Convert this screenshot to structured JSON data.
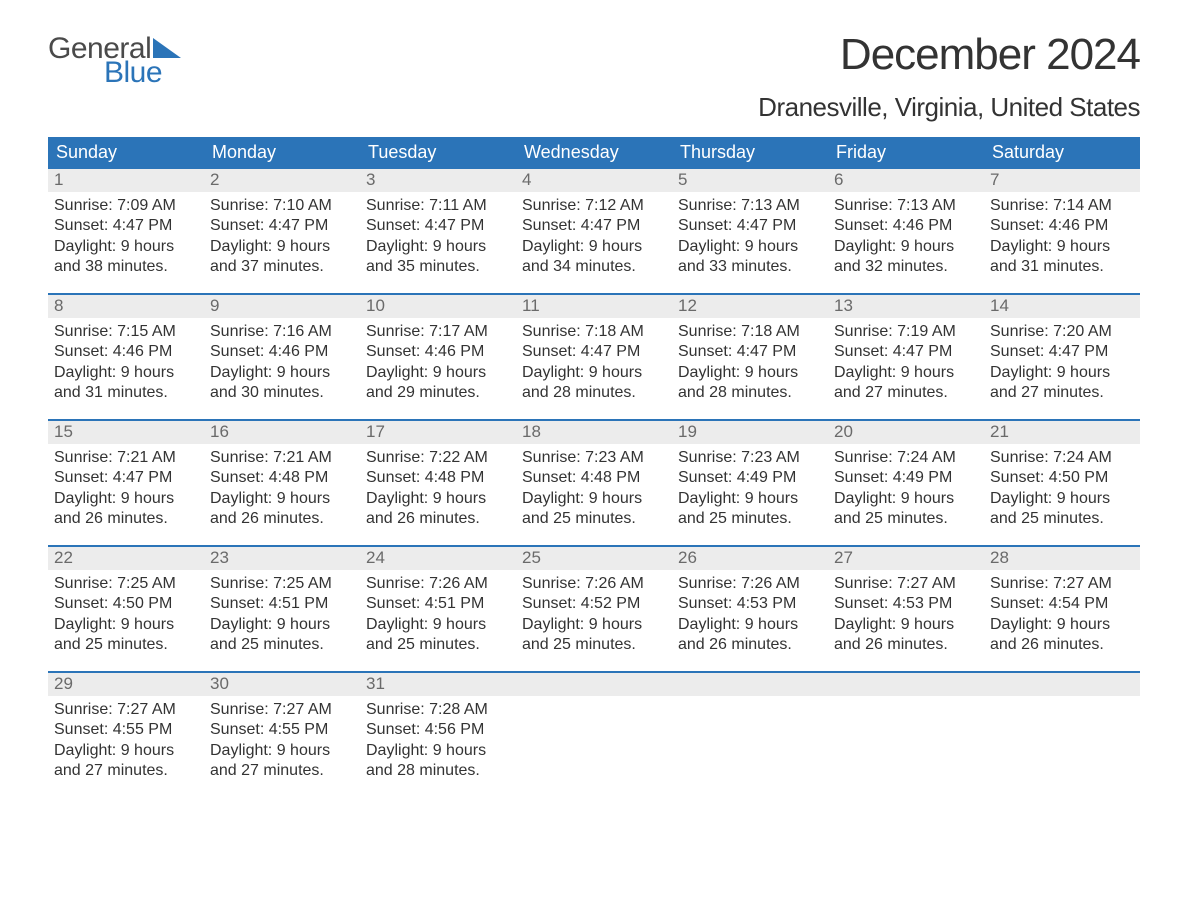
{
  "logo": {
    "text_general": "General",
    "text_blue": "Blue",
    "tri_color": "#2b74b8"
  },
  "title": "December 2024",
  "location": "Dranesville, Virginia, United States",
  "colors": {
    "header_bg": "#2b74b8",
    "header_text": "#ffffff",
    "daynum_bg": "#ececec",
    "daynum_text": "#6a6a6a",
    "body_text": "#333333",
    "week_border": "#2b74b8",
    "page_bg": "#ffffff"
  },
  "typography": {
    "title_fontsize_pt": 33,
    "location_fontsize_pt": 20,
    "dow_fontsize_pt": 14,
    "daynum_fontsize_pt": 13,
    "body_fontsize_pt": 12,
    "font_family": "Arial"
  },
  "dow": [
    "Sunday",
    "Monday",
    "Tuesday",
    "Wednesday",
    "Thursday",
    "Friday",
    "Saturday"
  ],
  "weeks": [
    [
      {
        "num": "1",
        "sunrise": "Sunrise: 7:09 AM",
        "sunset": "Sunset: 4:47 PM",
        "dl1": "Daylight: 9 hours",
        "dl2": "and 38 minutes."
      },
      {
        "num": "2",
        "sunrise": "Sunrise: 7:10 AM",
        "sunset": "Sunset: 4:47 PM",
        "dl1": "Daylight: 9 hours",
        "dl2": "and 37 minutes."
      },
      {
        "num": "3",
        "sunrise": "Sunrise: 7:11 AM",
        "sunset": "Sunset: 4:47 PM",
        "dl1": "Daylight: 9 hours",
        "dl2": "and 35 minutes."
      },
      {
        "num": "4",
        "sunrise": "Sunrise: 7:12 AM",
        "sunset": "Sunset: 4:47 PM",
        "dl1": "Daylight: 9 hours",
        "dl2": "and 34 minutes."
      },
      {
        "num": "5",
        "sunrise": "Sunrise: 7:13 AM",
        "sunset": "Sunset: 4:47 PM",
        "dl1": "Daylight: 9 hours",
        "dl2": "and 33 minutes."
      },
      {
        "num": "6",
        "sunrise": "Sunrise: 7:13 AM",
        "sunset": "Sunset: 4:46 PM",
        "dl1": "Daylight: 9 hours",
        "dl2": "and 32 minutes."
      },
      {
        "num": "7",
        "sunrise": "Sunrise: 7:14 AM",
        "sunset": "Sunset: 4:46 PM",
        "dl1": "Daylight: 9 hours",
        "dl2": "and 31 minutes."
      }
    ],
    [
      {
        "num": "8",
        "sunrise": "Sunrise: 7:15 AM",
        "sunset": "Sunset: 4:46 PM",
        "dl1": "Daylight: 9 hours",
        "dl2": "and 31 minutes."
      },
      {
        "num": "9",
        "sunrise": "Sunrise: 7:16 AM",
        "sunset": "Sunset: 4:46 PM",
        "dl1": "Daylight: 9 hours",
        "dl2": "and 30 minutes."
      },
      {
        "num": "10",
        "sunrise": "Sunrise: 7:17 AM",
        "sunset": "Sunset: 4:46 PM",
        "dl1": "Daylight: 9 hours",
        "dl2": "and 29 minutes."
      },
      {
        "num": "11",
        "sunrise": "Sunrise: 7:18 AM",
        "sunset": "Sunset: 4:47 PM",
        "dl1": "Daylight: 9 hours",
        "dl2": "and 28 minutes."
      },
      {
        "num": "12",
        "sunrise": "Sunrise: 7:18 AM",
        "sunset": "Sunset: 4:47 PM",
        "dl1": "Daylight: 9 hours",
        "dl2": "and 28 minutes."
      },
      {
        "num": "13",
        "sunrise": "Sunrise: 7:19 AM",
        "sunset": "Sunset: 4:47 PM",
        "dl1": "Daylight: 9 hours",
        "dl2": "and 27 minutes."
      },
      {
        "num": "14",
        "sunrise": "Sunrise: 7:20 AM",
        "sunset": "Sunset: 4:47 PM",
        "dl1": "Daylight: 9 hours",
        "dl2": "and 27 minutes."
      }
    ],
    [
      {
        "num": "15",
        "sunrise": "Sunrise: 7:21 AM",
        "sunset": "Sunset: 4:47 PM",
        "dl1": "Daylight: 9 hours",
        "dl2": "and 26 minutes."
      },
      {
        "num": "16",
        "sunrise": "Sunrise: 7:21 AM",
        "sunset": "Sunset: 4:48 PM",
        "dl1": "Daylight: 9 hours",
        "dl2": "and 26 minutes."
      },
      {
        "num": "17",
        "sunrise": "Sunrise: 7:22 AM",
        "sunset": "Sunset: 4:48 PM",
        "dl1": "Daylight: 9 hours",
        "dl2": "and 26 minutes."
      },
      {
        "num": "18",
        "sunrise": "Sunrise: 7:23 AM",
        "sunset": "Sunset: 4:48 PM",
        "dl1": "Daylight: 9 hours",
        "dl2": "and 25 minutes."
      },
      {
        "num": "19",
        "sunrise": "Sunrise: 7:23 AM",
        "sunset": "Sunset: 4:49 PM",
        "dl1": "Daylight: 9 hours",
        "dl2": "and 25 minutes."
      },
      {
        "num": "20",
        "sunrise": "Sunrise: 7:24 AM",
        "sunset": "Sunset: 4:49 PM",
        "dl1": "Daylight: 9 hours",
        "dl2": "and 25 minutes."
      },
      {
        "num": "21",
        "sunrise": "Sunrise: 7:24 AM",
        "sunset": "Sunset: 4:50 PM",
        "dl1": "Daylight: 9 hours",
        "dl2": "and 25 minutes."
      }
    ],
    [
      {
        "num": "22",
        "sunrise": "Sunrise: 7:25 AM",
        "sunset": "Sunset: 4:50 PM",
        "dl1": "Daylight: 9 hours",
        "dl2": "and 25 minutes."
      },
      {
        "num": "23",
        "sunrise": "Sunrise: 7:25 AM",
        "sunset": "Sunset: 4:51 PM",
        "dl1": "Daylight: 9 hours",
        "dl2": "and 25 minutes."
      },
      {
        "num": "24",
        "sunrise": "Sunrise: 7:26 AM",
        "sunset": "Sunset: 4:51 PM",
        "dl1": "Daylight: 9 hours",
        "dl2": "and 25 minutes."
      },
      {
        "num": "25",
        "sunrise": "Sunrise: 7:26 AM",
        "sunset": "Sunset: 4:52 PM",
        "dl1": "Daylight: 9 hours",
        "dl2": "and 25 minutes."
      },
      {
        "num": "26",
        "sunrise": "Sunrise: 7:26 AM",
        "sunset": "Sunset: 4:53 PM",
        "dl1": "Daylight: 9 hours",
        "dl2": "and 26 minutes."
      },
      {
        "num": "27",
        "sunrise": "Sunrise: 7:27 AM",
        "sunset": "Sunset: 4:53 PM",
        "dl1": "Daylight: 9 hours",
        "dl2": "and 26 minutes."
      },
      {
        "num": "28",
        "sunrise": "Sunrise: 7:27 AM",
        "sunset": "Sunset: 4:54 PM",
        "dl1": "Daylight: 9 hours",
        "dl2": "and 26 minutes."
      }
    ],
    [
      {
        "num": "29",
        "sunrise": "Sunrise: 7:27 AM",
        "sunset": "Sunset: 4:55 PM",
        "dl1": "Daylight: 9 hours",
        "dl2": "and 27 minutes."
      },
      {
        "num": "30",
        "sunrise": "Sunrise: 7:27 AM",
        "sunset": "Sunset: 4:55 PM",
        "dl1": "Daylight: 9 hours",
        "dl2": "and 27 minutes."
      },
      {
        "num": "31",
        "sunrise": "Sunrise: 7:28 AM",
        "sunset": "Sunset: 4:56 PM",
        "dl1": "Daylight: 9 hours",
        "dl2": "and 28 minutes."
      },
      {
        "empty": true
      },
      {
        "empty": true
      },
      {
        "empty": true
      },
      {
        "empty": true
      }
    ]
  ]
}
